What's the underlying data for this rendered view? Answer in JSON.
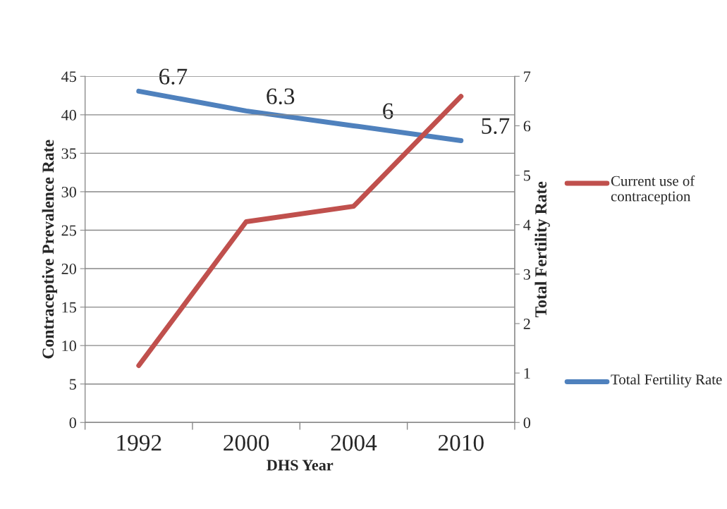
{
  "chart_data": {
    "type": "line",
    "xlabel": "DHS Year",
    "ylabel": "Contraceptive Prevalence Rate",
    "y2label": "Total Fertility Rate",
    "categories": [
      "1992",
      "2000",
      "2004",
      "2010"
    ],
    "series": [
      {
        "name": "Current use of contraception",
        "color": "#c0504d",
        "values": [
          7.4,
          26.1,
          28.1,
          42.4
        ]
      },
      {
        "name": "Total Fertility Rate",
        "color": "#4f81bd",
        "values": [
          6.7,
          6.3,
          6,
          5.7
        ],
        "axis": "y2",
        "value_labels": [
          "6.7",
          "6.3",
          "6",
          "5.7"
        ]
      }
    ],
    "ylim": [
      0,
      45
    ],
    "yticks": [
      0,
      5,
      10,
      15,
      20,
      25,
      30,
      35,
      40,
      45
    ],
    "y2lim": [
      0,
      7
    ],
    "y2ticks": [
      0,
      1,
      2,
      3,
      4,
      5,
      6,
      7
    ],
    "grid": "y",
    "legend": "right",
    "marker": "none",
    "line_style": "solid"
  }
}
